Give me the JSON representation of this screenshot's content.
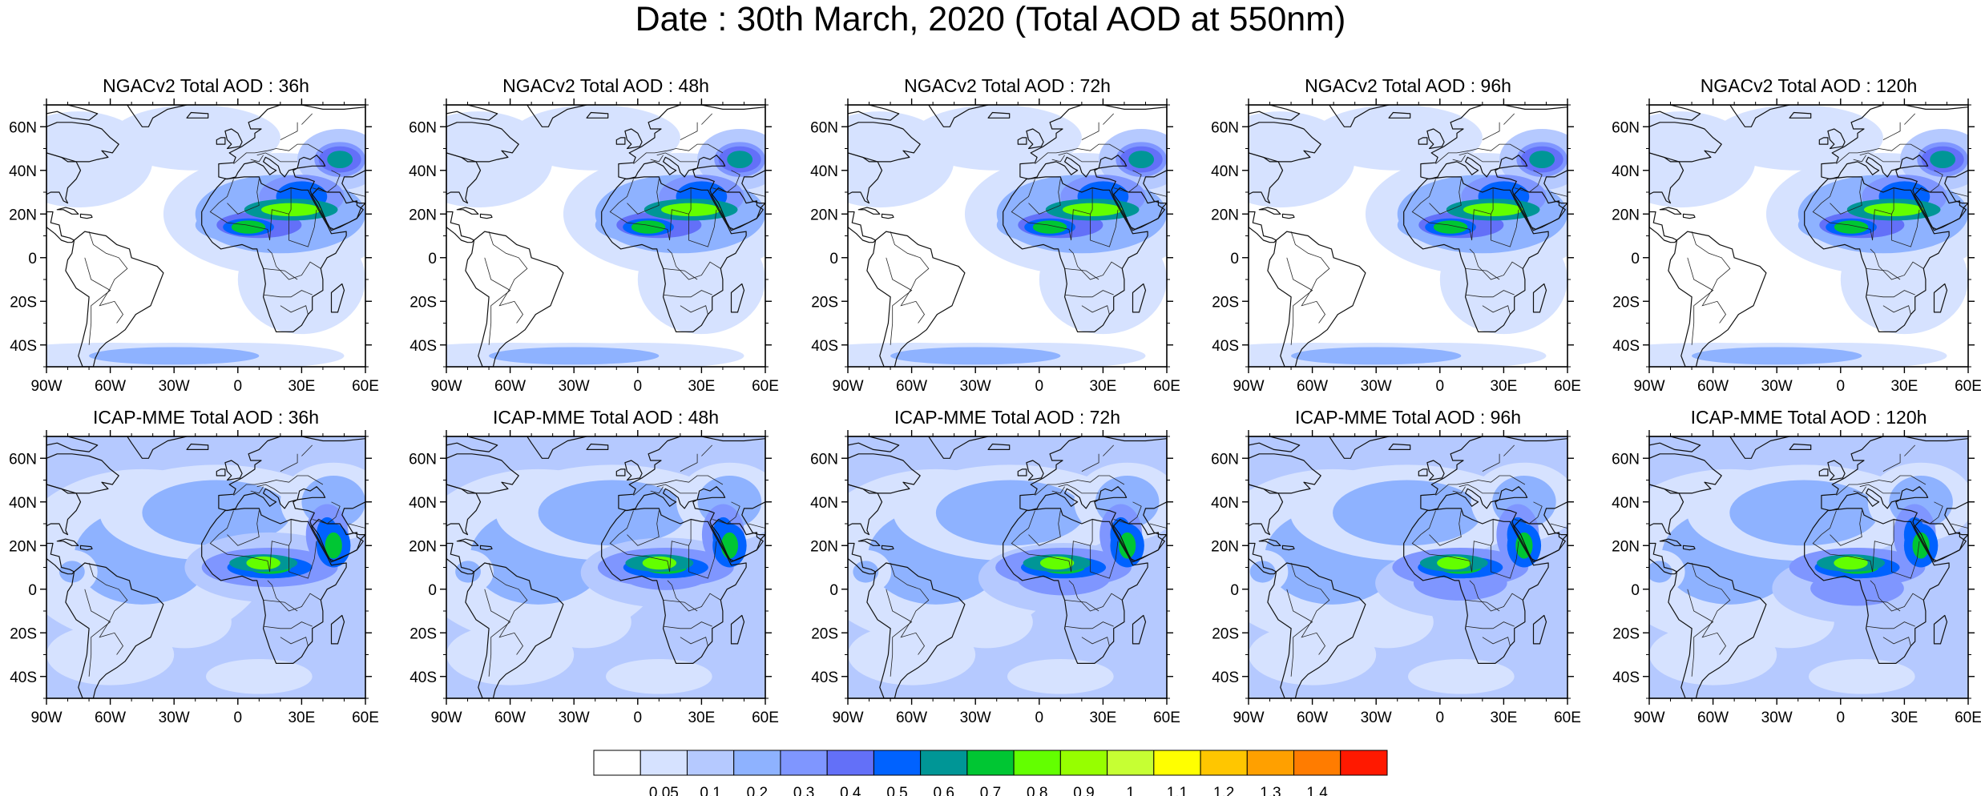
{
  "title": "Date : 30th March, 2020 (Total AOD at 550nm)",
  "panels": [
    {
      "id": "ngac-36",
      "title": "NGACv2 Total AOD : 36h",
      "model": "NGACv2",
      "lead": "36h"
    },
    {
      "id": "ngac-48",
      "title": "NGACv2 Total AOD : 48h",
      "model": "NGACv2",
      "lead": "48h"
    },
    {
      "id": "ngac-72",
      "title": "NGACv2 Total AOD : 72h",
      "model": "NGACv2",
      "lead": "72h"
    },
    {
      "id": "ngac-96",
      "title": "NGACv2 Total AOD : 96h",
      "model": "NGACv2",
      "lead": "96h"
    },
    {
      "id": "ngac-120",
      "title": "NGACv2 Total AOD : 120h",
      "model": "NGACv2",
      "lead": "120h"
    },
    {
      "id": "icap-36",
      "title": "ICAP-MME Total AOD : 36h",
      "model": "ICAP-MME",
      "lead": "36h"
    },
    {
      "id": "icap-48",
      "title": "ICAP-MME Total AOD : 48h",
      "model": "ICAP-MME",
      "lead": "48h"
    },
    {
      "id": "icap-72",
      "title": "ICAP-MME Total AOD : 72h",
      "model": "ICAP-MME",
      "lead": "72h"
    },
    {
      "id": "icap-96",
      "title": "ICAP-MME Total AOD : 96h",
      "model": "ICAP-MME",
      "lead": "96h"
    },
    {
      "id": "icap-120",
      "title": "ICAP-MME Total AOD : 120h",
      "model": "ICAP-MME",
      "lead": "120h"
    }
  ],
  "axes": {
    "lon_range": [
      -90,
      60
    ],
    "lat_range": [
      -50,
      70
    ],
    "x_ticks": [
      {
        "value": -90,
        "label": "90W"
      },
      {
        "value": -60,
        "label": "60W"
      },
      {
        "value": -30,
        "label": "30W"
      },
      {
        "value": 0,
        "label": "0"
      },
      {
        "value": 30,
        "label": "30E"
      },
      {
        "value": 60,
        "label": "60E"
      }
    ],
    "y_ticks": [
      {
        "value": 60,
        "label": "60N"
      },
      {
        "value": 40,
        "label": "40N"
      },
      {
        "value": 20,
        "label": "20N"
      },
      {
        "value": 0,
        "label": "0"
      },
      {
        "value": -20,
        "label": "20S"
      },
      {
        "value": -40,
        "label": "40S"
      }
    ]
  },
  "colorbar": {
    "colors": [
      "#ffffff",
      "#d6e2ff",
      "#b5c9ff",
      "#8eb2ff",
      "#7f96ff",
      "#6370f8",
      "#0062ff",
      "#009696",
      "#00c633",
      "#63ff00",
      "#96ff00",
      "#c6ff33",
      "#ffff00",
      "#ffc600",
      "#ffa000",
      "#ff7c00",
      "#ff1900"
    ],
    "labels": [
      "0.05",
      "0.1",
      "0.2",
      "0.3",
      "0.4",
      "0.5",
      "0.6",
      "0.7",
      "0.8",
      "0.9",
      "1",
      "1.1",
      "1.2",
      "1.3",
      "1.4"
    ]
  }
}
